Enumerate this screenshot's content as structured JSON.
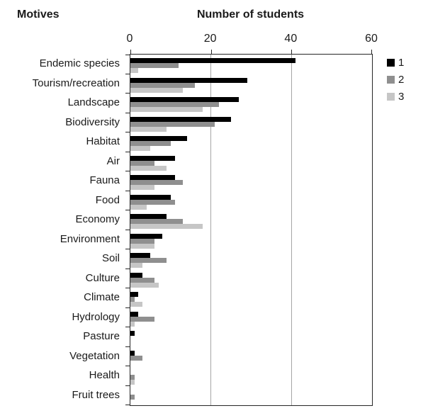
{
  "chart_data": {
    "type": "bar",
    "orientation": "horizontal",
    "xlabel": "Number of students",
    "ylabel": "Motives",
    "xlim": [
      0,
      60
    ],
    "xticks": [
      "0",
      "20",
      "40",
      "60"
    ],
    "gridlines": [
      20,
      40
    ],
    "grid": "vertical-only",
    "legend_position": "top-right-outside",
    "categories": [
      "Endemic species",
      "Tourism/recreation",
      "Landscape",
      "Biodiversity",
      "Habitat",
      "Air",
      "Fauna",
      "Food",
      "Economy",
      "Environment",
      "Soil",
      "Culture",
      "Climate",
      "Hydrology",
      "Pasture",
      "Vegetation",
      "Health",
      "Fruit trees"
    ],
    "series": [
      {
        "name": "1",
        "color": "#000000",
        "values": [
          41,
          29,
          27,
          25,
          14,
          11,
          11,
          10,
          9,
          8,
          5,
          3,
          2,
          2,
          1,
          1,
          0,
          0
        ]
      },
      {
        "name": "2",
        "color": "#8f8f8f",
        "values": [
          12,
          16,
          22,
          21,
          10,
          6,
          13,
          11,
          13,
          6,
          9,
          6,
          1,
          6,
          0,
          3,
          1,
          1
        ]
      },
      {
        "name": "3",
        "color": "#c6c6c6",
        "values": [
          2,
          13,
          18,
          9,
          5,
          9,
          6,
          4,
          18,
          6,
          3,
          7,
          3,
          1,
          0,
          0,
          1,
          0
        ]
      }
    ],
    "axis_color": "#262626",
    "gridline_color": "#a6a6a6"
  }
}
